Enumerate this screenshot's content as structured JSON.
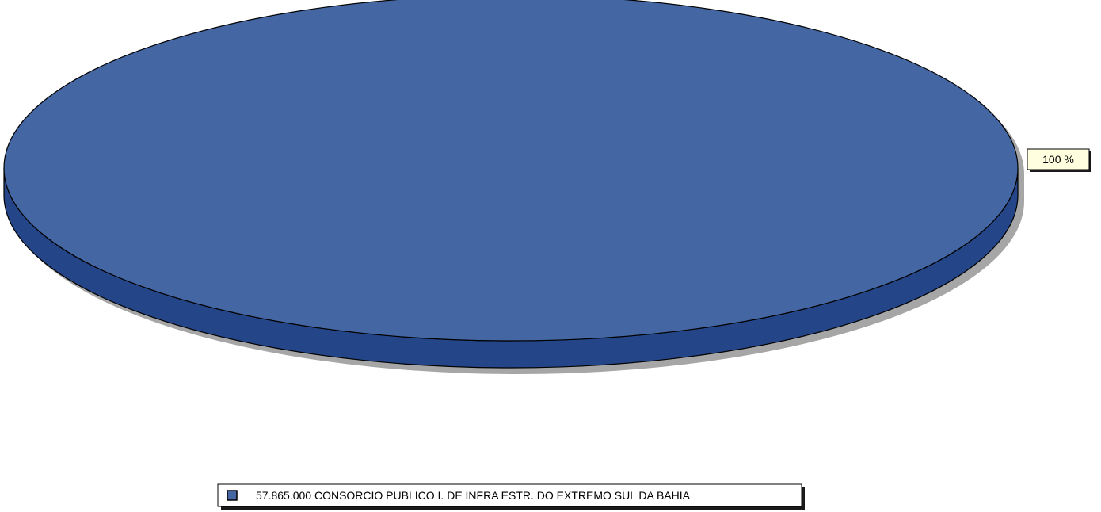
{
  "chart_data": {
    "type": "pie",
    "style": "3d",
    "slices": [
      {
        "label": "57.865.000 CONSORCIO PUBLICO I. DE INFRA ESTR. DO EXTREMO SUL DA BAHIA",
        "value": 100,
        "data_label": "100 %",
        "color": "#4466a2",
        "side_color": "#244688"
      }
    ],
    "legend_placement": "bottom-center",
    "data_label_background": "#ffffe0"
  }
}
